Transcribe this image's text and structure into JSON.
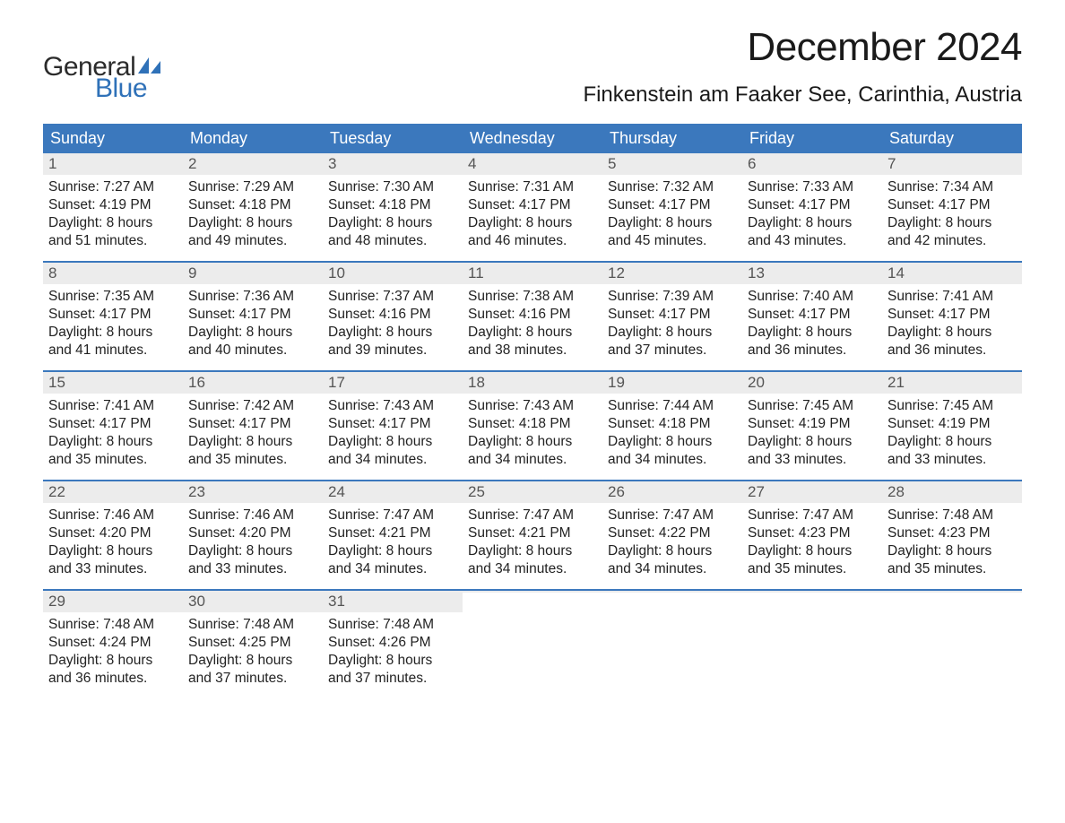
{
  "brand": {
    "word1": "General",
    "word2": "Blue",
    "icon_color": "#2f71b8",
    "word1_color": "#2b2b2b",
    "word2_color": "#2f71b8"
  },
  "header": {
    "title": "December 2024",
    "location": "Finkenstein am Faaker See, Carinthia, Austria",
    "title_color": "#1a1a1a",
    "title_fontsize": 44,
    "location_fontsize": 24
  },
  "calendar": {
    "header_bg": "#3b78bd",
    "header_text_color": "#ffffff",
    "week_border_color": "#3b78bd",
    "daynum_bg": "#ececec",
    "daynum_color": "#555555",
    "body_text_color": "#222222",
    "body_fontsize": 15.5,
    "daynames": [
      "Sunday",
      "Monday",
      "Tuesday",
      "Wednesday",
      "Thursday",
      "Friday",
      "Saturday"
    ],
    "labels": {
      "sunrise_prefix": "Sunrise: ",
      "sunset_prefix": "Sunset: ",
      "daylight_prefix": "Daylight: ",
      "hours_word": " hours",
      "and_word": "and ",
      "minutes_suffix": " minutes."
    },
    "weeks": [
      [
        {
          "n": "1",
          "sr": "7:27 AM",
          "ss": "4:19 PM",
          "dh": "8",
          "dm": "51"
        },
        {
          "n": "2",
          "sr": "7:29 AM",
          "ss": "4:18 PM",
          "dh": "8",
          "dm": "49"
        },
        {
          "n": "3",
          "sr": "7:30 AM",
          "ss": "4:18 PM",
          "dh": "8",
          "dm": "48"
        },
        {
          "n": "4",
          "sr": "7:31 AM",
          "ss": "4:17 PM",
          "dh": "8",
          "dm": "46"
        },
        {
          "n": "5",
          "sr": "7:32 AM",
          "ss": "4:17 PM",
          "dh": "8",
          "dm": "45"
        },
        {
          "n": "6",
          "sr": "7:33 AM",
          "ss": "4:17 PM",
          "dh": "8",
          "dm": "43"
        },
        {
          "n": "7",
          "sr": "7:34 AM",
          "ss": "4:17 PM",
          "dh": "8",
          "dm": "42"
        }
      ],
      [
        {
          "n": "8",
          "sr": "7:35 AM",
          "ss": "4:17 PM",
          "dh": "8",
          "dm": "41"
        },
        {
          "n": "9",
          "sr": "7:36 AM",
          "ss": "4:17 PM",
          "dh": "8",
          "dm": "40"
        },
        {
          "n": "10",
          "sr": "7:37 AM",
          "ss": "4:16 PM",
          "dh": "8",
          "dm": "39"
        },
        {
          "n": "11",
          "sr": "7:38 AM",
          "ss": "4:16 PM",
          "dh": "8",
          "dm": "38"
        },
        {
          "n": "12",
          "sr": "7:39 AM",
          "ss": "4:17 PM",
          "dh": "8",
          "dm": "37"
        },
        {
          "n": "13",
          "sr": "7:40 AM",
          "ss": "4:17 PM",
          "dh": "8",
          "dm": "36"
        },
        {
          "n": "14",
          "sr": "7:41 AM",
          "ss": "4:17 PM",
          "dh": "8",
          "dm": "36"
        }
      ],
      [
        {
          "n": "15",
          "sr": "7:41 AM",
          "ss": "4:17 PM",
          "dh": "8",
          "dm": "35"
        },
        {
          "n": "16",
          "sr": "7:42 AM",
          "ss": "4:17 PM",
          "dh": "8",
          "dm": "35"
        },
        {
          "n": "17",
          "sr": "7:43 AM",
          "ss": "4:17 PM",
          "dh": "8",
          "dm": "34"
        },
        {
          "n": "18",
          "sr": "7:43 AM",
          "ss": "4:18 PM",
          "dh": "8",
          "dm": "34"
        },
        {
          "n": "19",
          "sr": "7:44 AM",
          "ss": "4:18 PM",
          "dh": "8",
          "dm": "34"
        },
        {
          "n": "20",
          "sr": "7:45 AM",
          "ss": "4:19 PM",
          "dh": "8",
          "dm": "33"
        },
        {
          "n": "21",
          "sr": "7:45 AM",
          "ss": "4:19 PM",
          "dh": "8",
          "dm": "33"
        }
      ],
      [
        {
          "n": "22",
          "sr": "7:46 AM",
          "ss": "4:20 PM",
          "dh": "8",
          "dm": "33"
        },
        {
          "n": "23",
          "sr": "7:46 AM",
          "ss": "4:20 PM",
          "dh": "8",
          "dm": "33"
        },
        {
          "n": "24",
          "sr": "7:47 AM",
          "ss": "4:21 PM",
          "dh": "8",
          "dm": "34"
        },
        {
          "n": "25",
          "sr": "7:47 AM",
          "ss": "4:21 PM",
          "dh": "8",
          "dm": "34"
        },
        {
          "n": "26",
          "sr": "7:47 AM",
          "ss": "4:22 PM",
          "dh": "8",
          "dm": "34"
        },
        {
          "n": "27",
          "sr": "7:47 AM",
          "ss": "4:23 PM",
          "dh": "8",
          "dm": "35"
        },
        {
          "n": "28",
          "sr": "7:48 AM",
          "ss": "4:23 PM",
          "dh": "8",
          "dm": "35"
        }
      ],
      [
        {
          "n": "29",
          "sr": "7:48 AM",
          "ss": "4:24 PM",
          "dh": "8",
          "dm": "36"
        },
        {
          "n": "30",
          "sr": "7:48 AM",
          "ss": "4:25 PM",
          "dh": "8",
          "dm": "37"
        },
        {
          "n": "31",
          "sr": "7:48 AM",
          "ss": "4:26 PM",
          "dh": "8",
          "dm": "37"
        },
        {
          "empty": true
        },
        {
          "empty": true
        },
        {
          "empty": true
        },
        {
          "empty": true
        }
      ]
    ]
  }
}
